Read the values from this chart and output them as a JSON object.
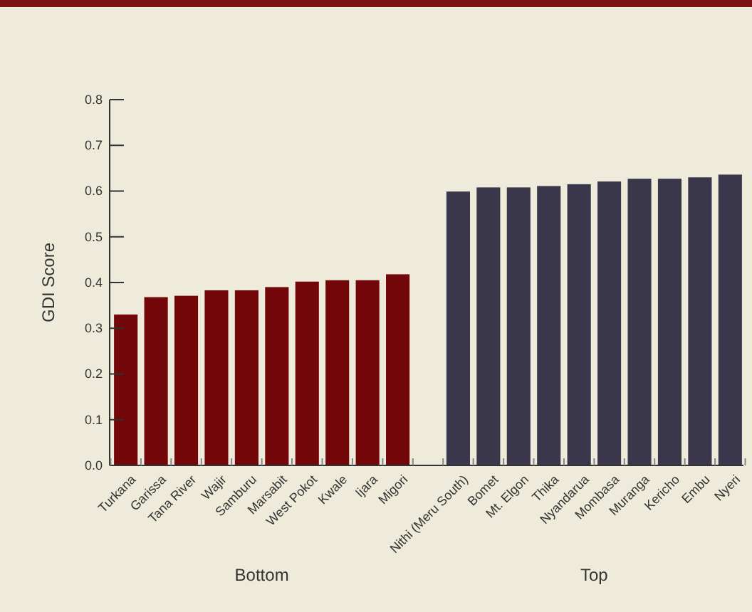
{
  "chart_data": {
    "type": "bar",
    "ylabel": "GDI Score",
    "categories": [
      "Turkana",
      "Garissa",
      "Tana River",
      "Wajir",
      "Samburu",
      "Marsabit",
      "West Pokot",
      "Kwale",
      "Ijara",
      "Migori",
      null,
      "Nithi (Meru South)",
      "Bomet",
      "Mt. Elgon",
      "Thika",
      "Nyandarua",
      "Mombasa",
      "Muranga",
      "Kericho",
      "Embu",
      "Nyeri"
    ],
    "series": [
      {
        "color": "#720609",
        "values": [
          0.33,
          0.368,
          0.371,
          0.383,
          0.383,
          0.39,
          0.402,
          0.405,
          0.405,
          0.418,
          null,
          null,
          null,
          null,
          null,
          null,
          null,
          null,
          null,
          null,
          null
        ]
      },
      {
        "color": "#3a364b",
        "values": [
          null,
          null,
          null,
          null,
          null,
          null,
          null,
          null,
          null,
          null,
          null,
          0.599,
          0.608,
          0.608,
          0.611,
          0.615,
          0.621,
          0.627,
          0.627,
          0.63,
          0.636
        ]
      }
    ],
    "ylim": [
      0,
      0.8
    ],
    "yticks": [
      {
        "value": 0,
        "label": "0.0"
      },
      0.1,
      0.2,
      0.3,
      0.4,
      0.5,
      0.6,
      0.7,
      0.8
    ],
    "grid": false,
    "annotations": [
      "Bottom",
      "Top"
    ]
  }
}
